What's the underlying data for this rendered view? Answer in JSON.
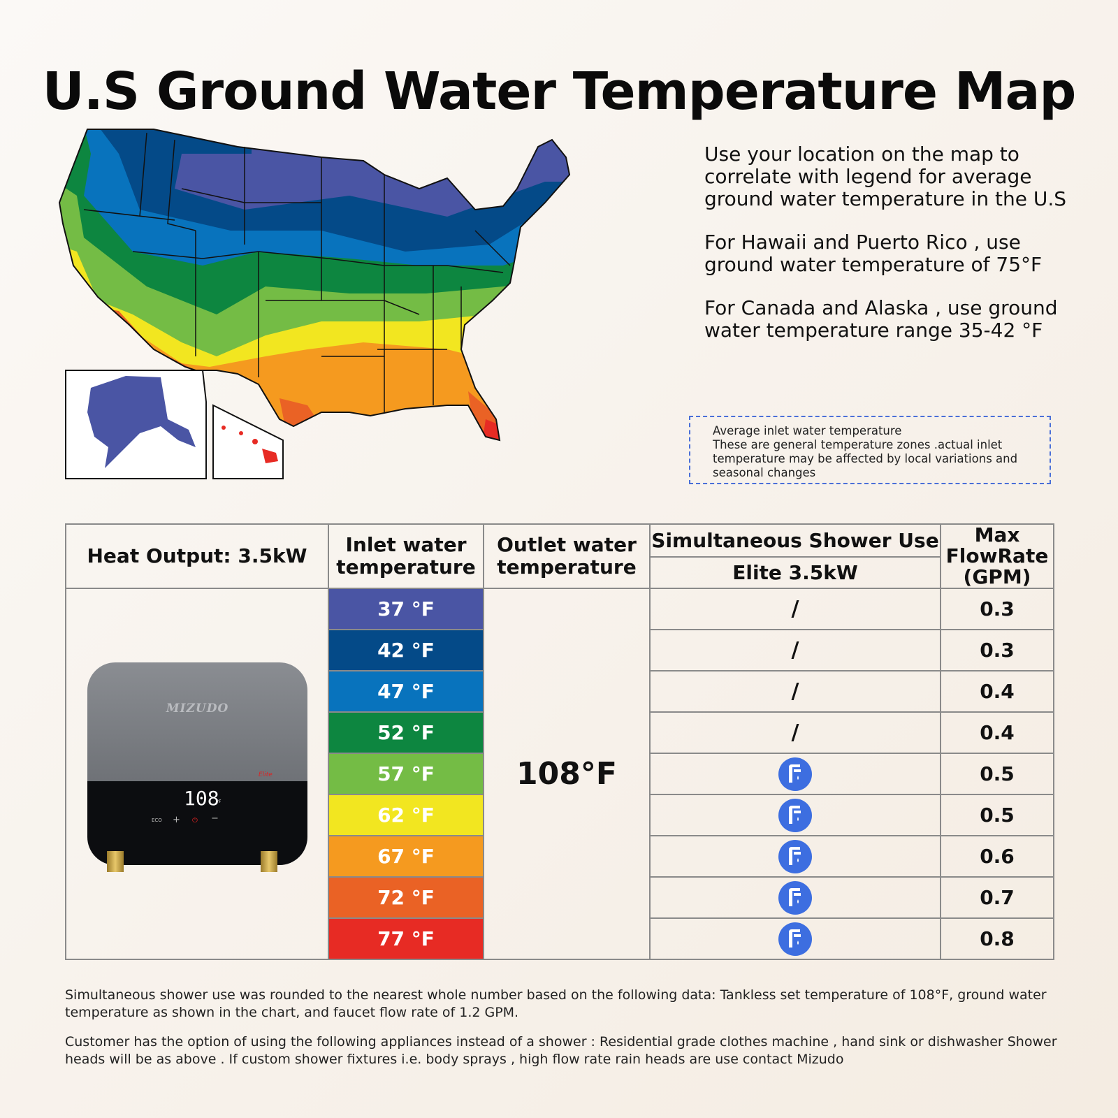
{
  "title": "U.S Ground Water Temperature Map",
  "info": {
    "p1": "Use your location on the map to correlate with legend for average ground water temperature in the U.S",
    "p2": "For Hawaii and Puerto Rico , use ground water temperature of 75°F",
    "p3": "For Canada and Alaska , use ground water temperature range 35-42 °F"
  },
  "note": {
    "line1": "Average inlet water temperature",
    "line2": "These are general temperature zones .actual inlet temperature may be affected by local variations and seasonal changes"
  },
  "table": {
    "heat_output": "Heat Output: 3.5kW",
    "inlet_header": "Inlet water temperature",
    "outlet_header": "Outlet water temperature",
    "shower_header": "Simultaneous Shower Use",
    "model_header": "Elite 3.5kW",
    "flow_header": "Max FlowRate (GPM)",
    "outlet_value": "108°F",
    "rows": [
      {
        "temp": "37 °F",
        "color": "#4a55a4",
        "shower": "/",
        "flow": "0.3"
      },
      {
        "temp": "42 °F",
        "color": "#044a88",
        "shower": "/",
        "flow": "0.3"
      },
      {
        "temp": "47 °F",
        "color": "#0873bd",
        "shower": "/",
        "flow": "0.4"
      },
      {
        "temp": "52 °F",
        "color": "#0d8640",
        "shower": "/",
        "flow": "0.4"
      },
      {
        "temp": "57 °F",
        "color": "#74bc45",
        "shower": "shower-icon",
        "flow": "0.5"
      },
      {
        "temp": "62 °F",
        "color": "#f2e620",
        "shower": "shower-icon",
        "flow": "0.5"
      },
      {
        "temp": "67 °F",
        "color": "#f59a1f",
        "shower": "shower-icon",
        "flow": "0.6"
      },
      {
        "temp": "72 °F",
        "color": "#ea6225",
        "shower": "shower-icon",
        "flow": "0.7"
      },
      {
        "temp": "77 °F",
        "color": "#e72b24",
        "shower": "shower-icon",
        "flow": "0.8"
      }
    ]
  },
  "heater": {
    "brand": "MIZUDO",
    "display": "108",
    "unit": "°F",
    "eco": "ECO",
    "badge": "Elite"
  },
  "footer": {
    "p1": "Simultaneous shower use was rounded to the nearest whole number based on the following data: Tankless set temperature of 108°F, ground water temperature as shown in the chart, and faucet flow rate of  1.2 GPM.",
    "p2": "Customer has the option of using the following appliances instead of a shower : Residential grade clothes machine , hand sink or dishwasher Shower heads will be as above . If custom shower fixtures i.e. body sprays , high flow rate rain heads are use contact Mizudo"
  }
}
